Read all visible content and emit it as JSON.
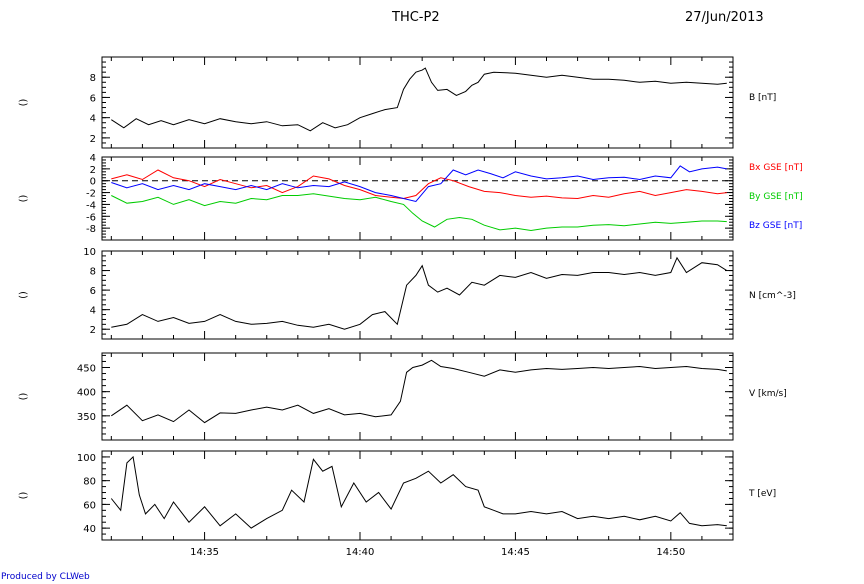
{
  "header": {
    "title": "THC-P2",
    "date": "27/Jun/2013"
  },
  "footer": {
    "credit": "Produced by CLWeb"
  },
  "colors": {
    "black": "#000000",
    "red": "#ff0000",
    "green": "#00cc00",
    "blue": "#0000ff"
  },
  "chart_data": [
    {
      "type": "line",
      "ylim": [
        1,
        10
      ],
      "yticks": [
        2,
        4,
        6,
        8
      ],
      "side_label": "()",
      "legend": [
        "B [nT]"
      ],
      "series": [
        {
          "name": "B [nT]",
          "color": "#000000",
          "x": [
            32.0,
            32.4,
            32.8,
            33.2,
            33.6,
            34.0,
            34.5,
            35.0,
            35.5,
            36.0,
            36.5,
            37.0,
            37.5,
            38.0,
            38.4,
            38.8,
            39.2,
            39.6,
            40.0,
            40.4,
            40.8,
            41.2,
            41.4,
            41.6,
            41.8,
            42.0,
            42.1,
            42.3,
            42.5,
            42.8,
            43.1,
            43.4,
            43.6,
            43.8,
            44.0,
            44.3,
            45.0,
            45.5,
            46.0,
            46.5,
            47.0,
            47.5,
            48.0,
            48.5,
            49.0,
            49.5,
            50.0,
            50.5,
            51.0,
            51.5,
            51.8
          ],
          "y": [
            3.8,
            3.0,
            3.9,
            3.3,
            3.7,
            3.3,
            3.8,
            3.4,
            3.9,
            3.6,
            3.4,
            3.6,
            3.2,
            3.3,
            2.7,
            3.5,
            3.0,
            3.3,
            4.0,
            4.4,
            4.8,
            5.0,
            6.8,
            7.8,
            8.5,
            8.7,
            8.9,
            7.5,
            6.7,
            6.8,
            6.2,
            6.6,
            7.2,
            7.5,
            8.3,
            8.5,
            8.4,
            8.2,
            8.0,
            8.2,
            8.0,
            7.8,
            7.8,
            7.7,
            7.5,
            7.6,
            7.4,
            7.5,
            7.4,
            7.3,
            7.4
          ]
        }
      ]
    },
    {
      "type": "line",
      "ylim": [
        -10,
        4
      ],
      "yticks": [
        -8,
        -6,
        -4,
        -2,
        0,
        2,
        4
      ],
      "side_label": "()",
      "zero_line": true,
      "legend": [
        "Bx GSE [nT]",
        "By GSE [nT]",
        "Bz GSE [nT]"
      ],
      "series": [
        {
          "name": "Bx GSE [nT]",
          "color": "#ff0000",
          "x": [
            32.0,
            32.5,
            33.0,
            33.5,
            34.0,
            34.5,
            35.0,
            35.5,
            36.0,
            36.5,
            37.0,
            37.5,
            38.0,
            38.5,
            39.0,
            39.5,
            40.0,
            40.5,
            41.0,
            41.4,
            41.8,
            42.2,
            42.6,
            43.0,
            43.5,
            44.0,
            44.5,
            45.0,
            45.5,
            46.0,
            46.5,
            47.0,
            47.5,
            48.0,
            48.5,
            49.0,
            49.5,
            50.0,
            50.5,
            51.0,
            51.5,
            51.8
          ],
          "y": [
            0.3,
            1.0,
            0.2,
            1.8,
            0.5,
            0.0,
            -1.0,
            0.2,
            -0.5,
            -1.2,
            -0.8,
            -2.0,
            -1.0,
            0.8,
            0.3,
            -0.8,
            -1.5,
            -2.5,
            -2.8,
            -3.0,
            -2.5,
            -0.5,
            0.5,
            0.0,
            -1.0,
            -1.8,
            -2.0,
            -2.5,
            -2.8,
            -2.6,
            -2.9,
            -3.0,
            -2.5,
            -2.8,
            -2.2,
            -1.8,
            -2.5,
            -2.0,
            -1.5,
            -1.8,
            -2.2,
            -2.0
          ]
        },
        {
          "name": "By GSE [nT]",
          "color": "#00cc00",
          "x": [
            32.0,
            32.5,
            33.0,
            33.5,
            34.0,
            34.5,
            35.0,
            35.5,
            36.0,
            36.5,
            37.0,
            37.5,
            38.0,
            38.5,
            39.0,
            39.5,
            40.0,
            40.5,
            41.0,
            41.4,
            41.7,
            42.0,
            42.4,
            42.8,
            43.2,
            43.6,
            44.0,
            44.5,
            45.0,
            45.5,
            46.0,
            46.5,
            47.0,
            47.5,
            48.0,
            48.5,
            49.0,
            49.5,
            50.0,
            50.5,
            51.0,
            51.5,
            51.8
          ],
          "y": [
            -2.5,
            -3.8,
            -3.5,
            -2.8,
            -4.0,
            -3.2,
            -4.2,
            -3.5,
            -3.8,
            -3.0,
            -3.2,
            -2.5,
            -2.5,
            -2.2,
            -2.6,
            -3.0,
            -3.2,
            -2.8,
            -3.5,
            -4.0,
            -5.5,
            -6.8,
            -7.8,
            -6.5,
            -6.2,
            -6.5,
            -7.5,
            -8.3,
            -8.0,
            -8.4,
            -8.0,
            -7.8,
            -7.8,
            -7.5,
            -7.4,
            -7.6,
            -7.3,
            -7.0,
            -7.2,
            -7.0,
            -6.8,
            -6.8,
            -6.9
          ]
        },
        {
          "name": "Bz GSE [nT]",
          "color": "#0000ff",
          "x": [
            32.0,
            32.5,
            33.0,
            33.5,
            34.0,
            34.5,
            35.0,
            35.5,
            36.0,
            36.5,
            37.0,
            37.5,
            38.0,
            38.5,
            39.0,
            39.5,
            40.0,
            40.5,
            41.0,
            41.4,
            41.8,
            42.2,
            42.6,
            43.0,
            43.4,
            43.8,
            44.2,
            44.6,
            45.0,
            45.5,
            46.0,
            46.5,
            47.0,
            47.5,
            48.0,
            48.5,
            49.0,
            49.5,
            50.0,
            50.3,
            50.6,
            51.0,
            51.5,
            51.8
          ],
          "y": [
            -0.3,
            -1.2,
            -0.5,
            -1.5,
            -0.8,
            -1.5,
            -0.5,
            -1.0,
            -1.5,
            -0.8,
            -1.5,
            -0.5,
            -1.2,
            -0.8,
            -1.0,
            -0.2,
            -1.0,
            -2.0,
            -2.5,
            -3.0,
            -3.5,
            -1.0,
            -0.5,
            1.8,
            1.0,
            1.8,
            1.2,
            0.5,
            1.5,
            0.8,
            0.3,
            0.5,
            0.8,
            0.2,
            0.5,
            0.6,
            0.2,
            0.8,
            0.5,
            2.5,
            1.5,
            2.0,
            2.3,
            2.0
          ]
        }
      ]
    },
    {
      "type": "line",
      "ylim": [
        1,
        10
      ],
      "yticks": [
        2,
        4,
        6,
        8,
        10
      ],
      "side_label": "()",
      "legend": [
        "N [cm^-3]"
      ],
      "series": [
        {
          "name": "N [cm^-3]",
          "color": "#000000",
          "x": [
            32.0,
            32.5,
            33.0,
            33.5,
            34.0,
            34.5,
            35.0,
            35.5,
            36.0,
            36.5,
            37.0,
            37.5,
            38.0,
            38.5,
            39.0,
            39.5,
            40.0,
            40.4,
            40.8,
            41.2,
            41.5,
            41.8,
            42.0,
            42.2,
            42.5,
            42.8,
            43.2,
            43.6,
            44.0,
            44.5,
            45.0,
            45.5,
            46.0,
            46.5,
            47.0,
            47.5,
            48.0,
            48.5,
            49.0,
            49.5,
            50.0,
            50.2,
            50.5,
            51.0,
            51.5,
            51.8
          ],
          "y": [
            2.2,
            2.5,
            3.5,
            2.8,
            3.2,
            2.6,
            2.8,
            3.5,
            2.8,
            2.5,
            2.6,
            2.8,
            2.4,
            2.2,
            2.5,
            2.0,
            2.5,
            3.5,
            3.8,
            2.5,
            6.5,
            7.5,
            8.5,
            6.5,
            5.8,
            6.2,
            5.5,
            6.8,
            6.5,
            7.5,
            7.3,
            7.8,
            7.2,
            7.6,
            7.5,
            7.8,
            7.8,
            7.6,
            7.8,
            7.5,
            7.8,
            9.3,
            7.8,
            8.8,
            8.6,
            8.0
          ]
        }
      ]
    },
    {
      "type": "line",
      "ylim": [
        300,
        480
      ],
      "yticks": [
        350,
        400,
        450
      ],
      "side_label": "()",
      "legend": [
        "V [km/s]"
      ],
      "series": [
        {
          "name": "V [km/s]",
          "color": "#000000",
          "x": [
            32.0,
            32.5,
            33.0,
            33.5,
            34.0,
            34.5,
            35.0,
            35.5,
            36.0,
            36.5,
            37.0,
            37.5,
            38.0,
            38.5,
            39.0,
            39.5,
            40.0,
            40.5,
            41.0,
            41.3,
            41.5,
            41.7,
            42.0,
            42.3,
            42.6,
            43.0,
            43.5,
            44.0,
            44.5,
            45.0,
            45.5,
            46.0,
            46.5,
            47.0,
            47.5,
            48.0,
            48.5,
            49.0,
            49.5,
            50.0,
            50.5,
            51.0,
            51.5,
            51.8
          ],
          "y": [
            350,
            372,
            340,
            352,
            338,
            362,
            336,
            356,
            355,
            362,
            368,
            362,
            372,
            355,
            365,
            352,
            355,
            348,
            352,
            380,
            440,
            450,
            455,
            465,
            452,
            448,
            440,
            432,
            445,
            440,
            445,
            448,
            446,
            448,
            450,
            448,
            450,
            452,
            448,
            450,
            452,
            448,
            446,
            443
          ]
        }
      ]
    },
    {
      "type": "line",
      "ylim": [
        30,
        105
      ],
      "yticks": [
        40,
        60,
        80,
        100
      ],
      "side_label": "()",
      "legend": [
        "T [eV]"
      ],
      "series": [
        {
          "name": "T [eV]",
          "color": "#000000",
          "x": [
            32.0,
            32.3,
            32.5,
            32.7,
            32.9,
            33.1,
            33.4,
            33.7,
            34.0,
            34.5,
            35.0,
            35.5,
            36.0,
            36.5,
            37.0,
            37.5,
            37.8,
            38.2,
            38.5,
            38.8,
            39.1,
            39.4,
            39.8,
            40.2,
            40.6,
            41.0,
            41.4,
            41.8,
            42.2,
            42.6,
            43.0,
            43.4,
            43.8,
            44.0,
            44.3,
            44.6,
            45.0,
            45.5,
            46.0,
            46.5,
            47.0,
            47.5,
            48.0,
            48.5,
            49.0,
            49.5,
            50.0,
            50.3,
            50.6,
            51.0,
            51.5,
            51.8
          ],
          "y": [
            65,
            55,
            95,
            100,
            68,
            52,
            60,
            48,
            62,
            45,
            58,
            42,
            52,
            40,
            48,
            55,
            72,
            62,
            98,
            88,
            92,
            58,
            78,
            62,
            70,
            56,
            78,
            82,
            88,
            78,
            85,
            75,
            72,
            58,
            55,
            52,
            52,
            54,
            52,
            54,
            48,
            50,
            48,
            50,
            47,
            50,
            46,
            53,
            44,
            42,
            43,
            42
          ]
        }
      ]
    }
  ],
  "x_axis": {
    "min": 31.7,
    "max": 52.0,
    "ticks": [
      35,
      40,
      45,
      50
    ],
    "tick_labels": [
      "14:35",
      "14:40",
      "14:45",
      "14:50"
    ]
  }
}
